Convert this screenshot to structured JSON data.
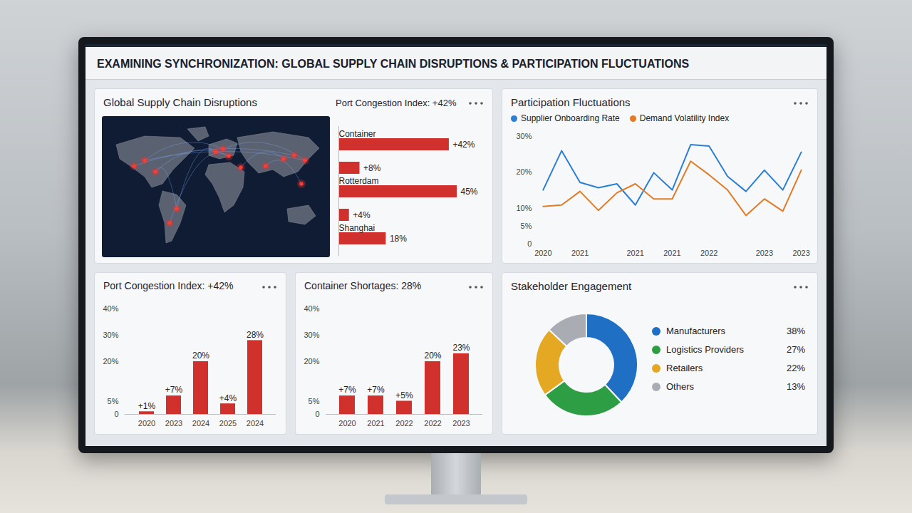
{
  "title": "EXAMINING SYNCHRONIZATION: GLOBAL SUPPLY CHAIN DISRUPTIONS & PARTICIPATION FLUCTUATIONS",
  "chart_data": [
    {
      "type": "bar",
      "title": "Global Supply Chain Disruptions",
      "subtitle": "Port Congestion Index: +42%",
      "orientation": "horizontal",
      "categories": [
        "Container",
        null,
        "Rotterdam",
        null,
        "Shanghai"
      ],
      "values": [
        42,
        8,
        45,
        4,
        18
      ],
      "value_labels": [
        "+42%",
        "+8%",
        "45%",
        "+4%",
        "18%"
      ],
      "color": "#d0312d",
      "xlim": [
        0,
        45
      ],
      "tick_labels": "y",
      "data_labels": true
    },
    {
      "type": "line",
      "title": "Participation Fluctuations",
      "categories": [
        "2020",
        null,
        "2021",
        null,
        null,
        "2021",
        null,
        "2021",
        null,
        "2022",
        null,
        null,
        "2023",
        null,
        "2023"
      ],
      "series": [
        {
          "name": "Supplier Onboarding Rate",
          "color": "#2a7fd4",
          "values": [
            15.1,
            26.0,
            17.2,
            15.7,
            16.8,
            10.9,
            19.9,
            15.1,
            27.7,
            27.3,
            18.9,
            14.7,
            20.6,
            15.1,
            25.6
          ]
        },
        {
          "name": "Demand Volatility Index",
          "color": "#e07b26",
          "values": [
            10.5,
            10.9,
            14.7,
            9.4,
            14.3,
            16.8,
            12.6,
            12.6,
            23.1,
            19.3,
            15.1,
            8.0,
            12.6,
            9.2,
            20.6
          ]
        }
      ],
      "ylim": [
        0,
        30
      ],
      "yticks": [
        0,
        {
          "value": 5,
          "label": "5%"
        },
        {
          "value": 10,
          "label": "10%"
        },
        {
          "value": 20,
          "label": "20%"
        },
        {
          "value": 30,
          "label": "30%"
        }
      ],
      "legend": "top-left",
      "grid": false
    },
    {
      "type": "bar",
      "title": "Port Congestion Index: +42%",
      "categories": [
        "2020",
        "2023",
        "2024",
        "2025",
        "2024"
      ],
      "values": [
        1,
        7,
        20,
        4,
        28
      ],
      "value_labels": [
        "+1%",
        "+7%",
        "20%",
        "+4%",
        "28%"
      ],
      "color": "#d0312d",
      "ylim": [
        0,
        40
      ],
      "yticks": [
        0,
        {
          "value": 5,
          "label": "5%"
        },
        {
          "value": 20,
          "label": "20%"
        },
        {
          "value": 30,
          "label": "30%"
        },
        {
          "value": 40,
          "label": "40%"
        }
      ],
      "data_labels": true
    },
    {
      "type": "bar",
      "title": "Container Shortages: 28%",
      "categories": [
        "2020",
        "2021",
        "2022",
        "2022",
        "2023"
      ],
      "values": [
        7,
        7,
        5,
        20,
        23
      ],
      "value_labels": [
        "+7%",
        "+7%",
        "+5%",
        "20%",
        "23%"
      ],
      "color": "#d0312d",
      "ylim": [
        0,
        40
      ],
      "yticks": [
        0,
        {
          "value": 5,
          "label": "5%"
        },
        {
          "value": 20,
          "label": "20%"
        },
        {
          "value": 30,
          "label": "30%"
        },
        {
          "value": 40,
          "label": "40%"
        }
      ],
      "data_labels": true
    },
    {
      "type": "donut",
      "title": "Stakeholder Engagement",
      "categories": [
        "Manufacturers",
        "Logistics Providers",
        "Retailers",
        "Others"
      ],
      "values": [
        38,
        27,
        22,
        13
      ],
      "value_labels": [
        "38%",
        "27%",
        "22%",
        "13%"
      ],
      "colors": [
        "#1f6fc5",
        "#2e9e44",
        "#e5a823",
        "#a9adb3"
      ],
      "legend": "right"
    }
  ]
}
